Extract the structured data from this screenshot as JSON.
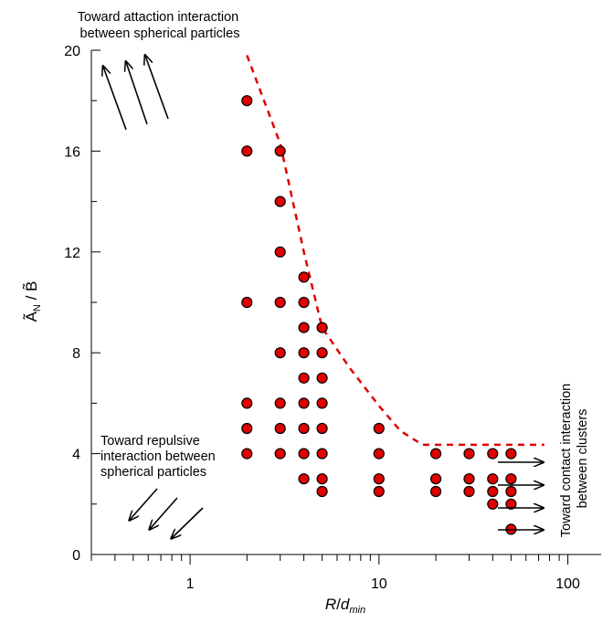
{
  "chart_data": {
    "type": "scatter",
    "x_scale": "log",
    "xlim": [
      0.3,
      150
    ],
    "ylim": [
      0,
      20
    ],
    "x_ticks": [
      1,
      10,
      100
    ],
    "x_tick_labels": [
      "1",
      "10",
      "100"
    ],
    "y_ticks": [
      0,
      4,
      8,
      12,
      16,
      20
    ],
    "y_tick_labels": [
      "0",
      "4",
      "8",
      "12",
      "16",
      "20"
    ],
    "xlabel": {
      "main": "R",
      "sep": "/",
      "d": "d",
      "sub": "min"
    },
    "ylabel": {
      "a": "Ã",
      "sub": "N",
      "rest": " / B̃"
    },
    "grid": false,
    "legend": "none",
    "marker_color": "#e00000",
    "boundary_color": "#e00000",
    "points": [
      [
        2,
        18
      ],
      [
        2,
        16
      ],
      [
        2,
        10
      ],
      [
        2,
        6
      ],
      [
        2,
        5
      ],
      [
        2,
        4
      ],
      [
        3,
        16
      ],
      [
        3,
        14
      ],
      [
        3,
        12
      ],
      [
        3,
        10
      ],
      [
        3,
        8
      ],
      [
        3,
        6
      ],
      [
        3,
        5
      ],
      [
        3,
        4
      ],
      [
        4,
        11
      ],
      [
        4,
        10
      ],
      [
        4,
        9
      ],
      [
        4,
        8
      ],
      [
        4,
        7
      ],
      [
        4,
        6
      ],
      [
        4,
        5
      ],
      [
        4,
        4
      ],
      [
        4,
        3
      ],
      [
        5,
        9
      ],
      [
        5,
        8
      ],
      [
        5,
        7
      ],
      [
        5,
        6
      ],
      [
        5,
        5
      ],
      [
        5,
        4
      ],
      [
        5,
        3
      ],
      [
        5,
        2.5
      ],
      [
        10,
        5
      ],
      [
        10,
        4
      ],
      [
        10,
        3
      ],
      [
        10,
        2.5
      ],
      [
        20,
        4
      ],
      [
        20,
        3
      ],
      [
        20,
        2.5
      ],
      [
        30,
        4
      ],
      [
        30,
        3
      ],
      [
        30,
        2.5
      ],
      [
        40,
        4
      ],
      [
        40,
        3
      ],
      [
        40,
        2.5
      ],
      [
        40,
        2
      ],
      [
        50,
        4
      ],
      [
        50,
        3
      ],
      [
        50,
        2.5
      ],
      [
        50,
        2
      ],
      [
        50,
        1
      ]
    ],
    "boundary": [
      [
        2,
        19.8
      ],
      [
        3,
        16.3
      ],
      [
        4,
        12
      ],
      [
        5,
        9
      ],
      [
        7,
        7.4
      ],
      [
        10,
        5.9
      ],
      [
        13,
        4.9
      ],
      [
        17,
        4.35
      ],
      [
        30,
        4.35
      ],
      [
        50,
        4.35
      ],
      [
        75,
        4.35
      ]
    ],
    "annotations": {
      "attraction": [
        "Toward attaction interaction",
        "between spherical particles"
      ],
      "repulsive": [
        "Toward repulsive",
        "interaction between",
        "spherical particles"
      ],
      "contact": [
        "Toward contact interaction",
        "between clusters"
      ]
    }
  }
}
